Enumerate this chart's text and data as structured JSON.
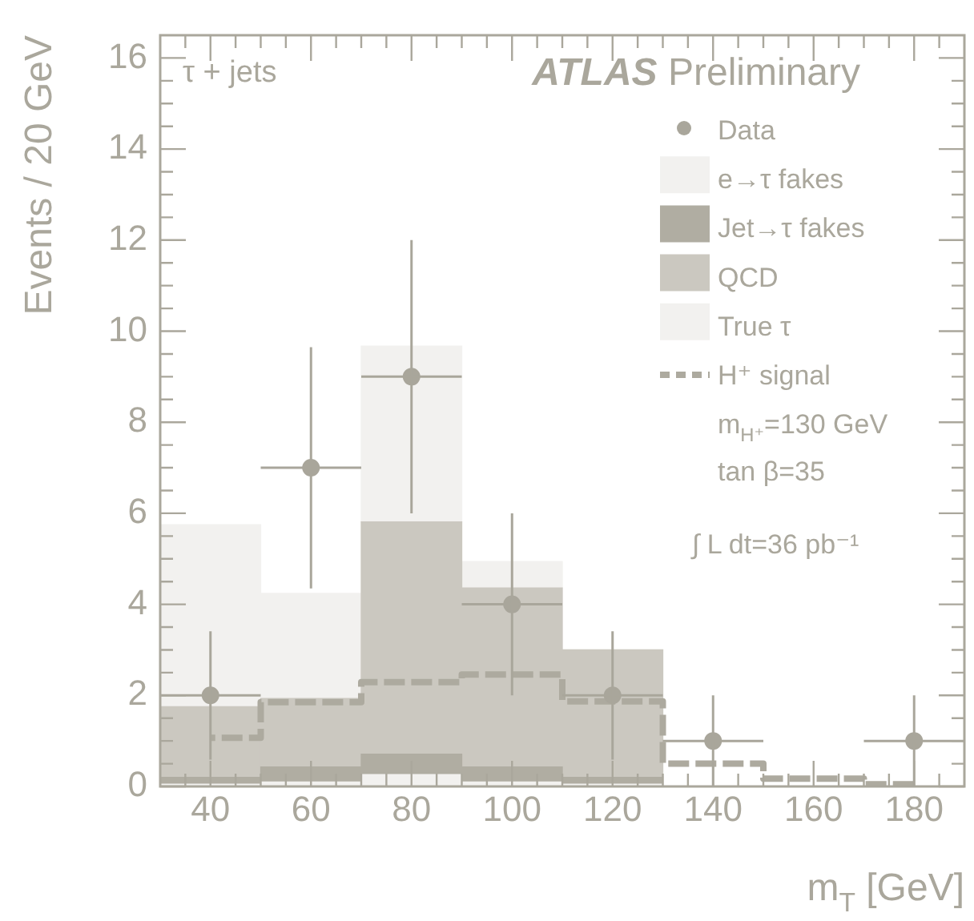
{
  "chart_data": {
    "type": "bar",
    "stacked": true,
    "xlabel": "m$_{T}$ [GeV]",
    "ylabel": "Events / 20 GeV",
    "x": [
      40,
      60,
      80,
      100,
      120,
      140,
      160,
      180
    ],
    "xlim": [
      30,
      190
    ],
    "xticks": [
      40,
      60,
      80,
      100,
      120,
      140,
      160,
      180
    ],
    "ylim": [
      0,
      16.5
    ],
    "yticks": [
      0,
      2,
      4,
      6,
      8,
      10,
      12,
      14,
      16
    ],
    "legend": "top right",
    "annotations": [
      "τ + jets",
      "ATLAS Preliminary",
      "m$_{H⁺}$=130 GeV",
      "tan β=35",
      "∫ L dt=36 pb⁻¹"
    ],
    "series": [
      {
        "name": "Data",
        "type": "scatter",
        "marker": "circle",
        "color": "#a9a69b",
        "values": [
          2,
          7,
          9,
          4,
          2,
          1,
          null,
          1
        ],
        "errors": [
          1.41,
          2.65,
          3,
          2,
          1.41,
          1,
          null,
          1
        ],
        "xerrors": [
          10,
          10,
          10,
          10,
          10,
          10,
          null,
          10
        ]
      },
      {
        "name": "e→τ fakes",
        "color": "#f2f1ef",
        "values": [
          0.05,
          0.1,
          0.26,
          0.1,
          0.05,
          0,
          0,
          0
        ]
      },
      {
        "name": "Jet→τ fakes",
        "color": "#b0ada2",
        "values": [
          0.15,
          0.33,
          0.45,
          0.33,
          0.15,
          0,
          0,
          0
        ]
      },
      {
        "name": "QCD",
        "color": "#cbc8c0",
        "values": [
          1.55,
          1.5,
          5.1,
          3.93,
          2.8,
          0,
          0,
          0
        ]
      },
      {
        "name": "True τ",
        "color": "#f2f1ef",
        "values": [
          4.0,
          2.31,
          3.86,
          0.58,
          0,
          0,
          0,
          0
        ]
      },
      {
        "name": "H⁺ signal",
        "type": "step",
        "line_style": "dashed",
        "color": "#adaa9f",
        "values": [
          1.07,
          1.85,
          2.29,
          2.46,
          1.87,
          0.5,
          0.17,
          0.05
        ]
      }
    ]
  }
}
